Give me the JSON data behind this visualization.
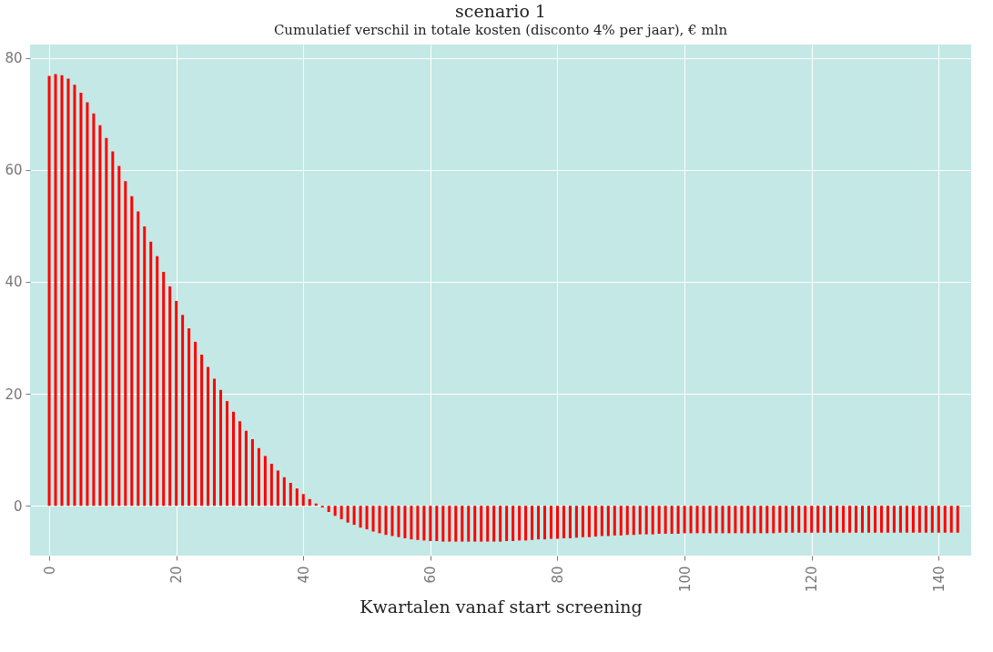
{
  "chart_data": {
    "type": "bar",
    "title": "scenario 1",
    "subtitle": "Cumulatief verschil in totale kosten (disconto 4% per jaar), € mln",
    "xlabel": "Kwartalen vanaf start screening",
    "x": [
      0,
      1,
      2,
      3,
      4,
      5,
      6,
      7,
      8,
      9,
      10,
      11,
      12,
      13,
      14,
      15,
      16,
      17,
      18,
      19,
      20,
      21,
      22,
      23,
      24,
      25,
      26,
      27,
      28,
      29,
      30,
      31,
      32,
      33,
      34,
      35,
      36,
      37,
      38,
      39,
      40,
      41,
      42,
      43,
      44,
      45,
      46,
      47,
      48,
      49,
      50,
      51,
      52,
      53,
      54,
      55,
      56,
      57,
      58,
      59,
      60,
      61,
      62,
      63,
      64,
      65,
      66,
      67,
      68,
      69,
      70,
      71,
      72,
      73,
      74,
      75,
      76,
      77,
      78,
      79,
      80,
      81,
      82,
      83,
      84,
      85,
      86,
      87,
      88,
      89,
      90,
      91,
      92,
      93,
      94,
      95,
      96,
      97,
      98,
      99,
      100,
      101,
      102,
      103,
      104,
      105,
      106,
      107,
      108,
      109,
      110,
      111,
      112,
      113,
      114,
      115,
      116,
      117,
      118,
      119,
      120,
      121,
      122,
      123,
      124,
      125,
      126,
      127,
      128,
      129,
      130,
      131,
      132,
      133,
      134,
      135,
      136,
      137,
      138,
      139,
      140,
      141,
      142,
      143
    ],
    "values": [
      76.8,
      77.1,
      76.9,
      76.3,
      75.2,
      73.8,
      72.1,
      70.1,
      68.0,
      65.7,
      63.3,
      60.7,
      58.0,
      55.3,
      52.6,
      49.9,
      47.2,
      44.6,
      41.8,
      39.2,
      36.6,
      34.1,
      31.7,
      29.3,
      27.0,
      24.8,
      22.7,
      20.7,
      18.7,
      16.8,
      15.1,
      13.4,
      11.9,
      10.3,
      8.9,
      7.5,
      6.3,
      5.1,
      4.1,
      3.1,
      2.1,
      1.2,
      0.4,
      -0.3,
      -1.1,
      -1.8,
      -2.4,
      -3.0,
      -3.4,
      -3.9,
      -4.2,
      -4.6,
      -4.9,
      -5.2,
      -5.4,
      -5.6,
      -5.8,
      -6.0,
      -6.1,
      -6.2,
      -6.3,
      -6.3,
      -6.4,
      -6.4,
      -6.4,
      -6.4,
      -6.4,
      -6.4,
      -6.4,
      -6.4,
      -6.4,
      -6.4,
      -6.3,
      -6.3,
      -6.2,
      -6.2,
      -6.1,
      -6.0,
      -6.0,
      -5.9,
      -5.9,
      -5.8,
      -5.8,
      -5.7,
      -5.6,
      -5.6,
      -5.5,
      -5.4,
      -5.4,
      -5.3,
      -5.3,
      -5.2,
      -5.2,
      -5.1,
      -5.1,
      -5.1,
      -5.0,
      -5.0,
      -5.0,
      -5.0,
      -4.9,
      -4.9,
      -4.9,
      -4.9,
      -4.9,
      -4.9,
      -4.9,
      -4.9,
      -4.9,
      -4.9,
      -4.9,
      -4.9,
      -4.9,
      -4.9,
      -4.9,
      -4.8,
      -4.8,
      -4.8,
      -4.8,
      -4.8,
      -4.8,
      -4.8,
      -4.8,
      -4.8,
      -4.8,
      -4.8,
      -4.8,
      -4.8,
      -4.8,
      -4.8,
      -4.8,
      -4.8,
      -4.8,
      -4.8,
      -4.8,
      -4.8,
      -4.8,
      -4.8,
      -4.8,
      -4.8,
      -4.8,
      -4.8,
      -4.8,
      -4.8
    ],
    "color": "#ff0000",
    "xlim": [
      -2.3,
      144.4
    ],
    "xticks": [
      0,
      20,
      40,
      60,
      80,
      100,
      120,
      140
    ],
    "ylim": [
      -8.9,
      82.4
    ],
    "yticks": [
      0,
      20,
      40,
      60,
      80
    ],
    "grid": true
  }
}
